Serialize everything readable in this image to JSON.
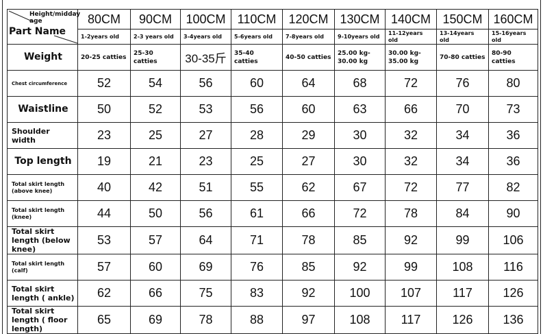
{
  "corner": {
    "top": "Height/midday age",
    "bottom": "Part Name"
  },
  "sizes": [
    "80CM",
    "90CM",
    "100CM",
    "110CM",
    "120CM",
    "130CM",
    "140CM",
    "150CM",
    "160CM"
  ],
  "ages": [
    "1-2years old",
    "2-3 years old",
    "3-4years old",
    "5-6years old",
    "7-8years old",
    "9-10years old",
    "11-12years old",
    "13-14years old",
    "15-16years old"
  ],
  "weight": {
    "label": "Weight",
    "values": [
      "20-25 catties",
      "25-30 catties",
      "30-35斤",
      "35-40 catties",
      "40-50 catties",
      "25.00 kg-30.00 kg",
      "30.00 kg-35.00 kg",
      "70-80 catties",
      "80-90 catties"
    ]
  },
  "rows": [
    {
      "label": "Chest circumference",
      "values": [
        "52",
        "54",
        "56",
        "60",
        "64",
        "68",
        "72",
        "76",
        "80"
      ]
    },
    {
      "label": "Waistline",
      "values": [
        "50",
        "52",
        "53",
        "56",
        "60",
        "63",
        "66",
        "70",
        "73"
      ]
    },
    {
      "label": "Shoulder width",
      "values": [
        "23",
        "25",
        "27",
        "28",
        "29",
        "30",
        "32",
        "34",
        "36"
      ]
    },
    {
      "label": "Top length",
      "values": [
        "19",
        "21",
        "23",
        "25",
        "27",
        "30",
        "32",
        "34",
        "36"
      ]
    },
    {
      "label": "Total skirt length (above knee)",
      "values": [
        "40",
        "42",
        "51",
        "55",
        "62",
        "67",
        "72",
        "77",
        "82"
      ]
    },
    {
      "label": "Total skirt length (knee)",
      "values": [
        "44",
        "50",
        "56",
        "61",
        "66",
        "72",
        "78",
        "84",
        "90"
      ]
    },
    {
      "label": "Total skirt length (below knee)",
      "values": [
        "53",
        "57",
        "64",
        "71",
        "78",
        "85",
        "92",
        "99",
        "106"
      ]
    },
    {
      "label": "Total skirt length (calf)",
      "values": [
        "57",
        "60",
        "69",
        "76",
        "85",
        "92",
        "99",
        "108",
        "116"
      ]
    },
    {
      "label": "Total skirt length ( ankle)",
      "values": [
        "62",
        "66",
        "75",
        "83",
        "92",
        "100",
        "107",
        "117",
        "126"
      ]
    },
    {
      "label": "Total skirt length ( floor length)",
      "values": [
        "65",
        "69",
        "78",
        "88",
        "97",
        "108",
        "117",
        "126",
        "136"
      ]
    }
  ]
}
